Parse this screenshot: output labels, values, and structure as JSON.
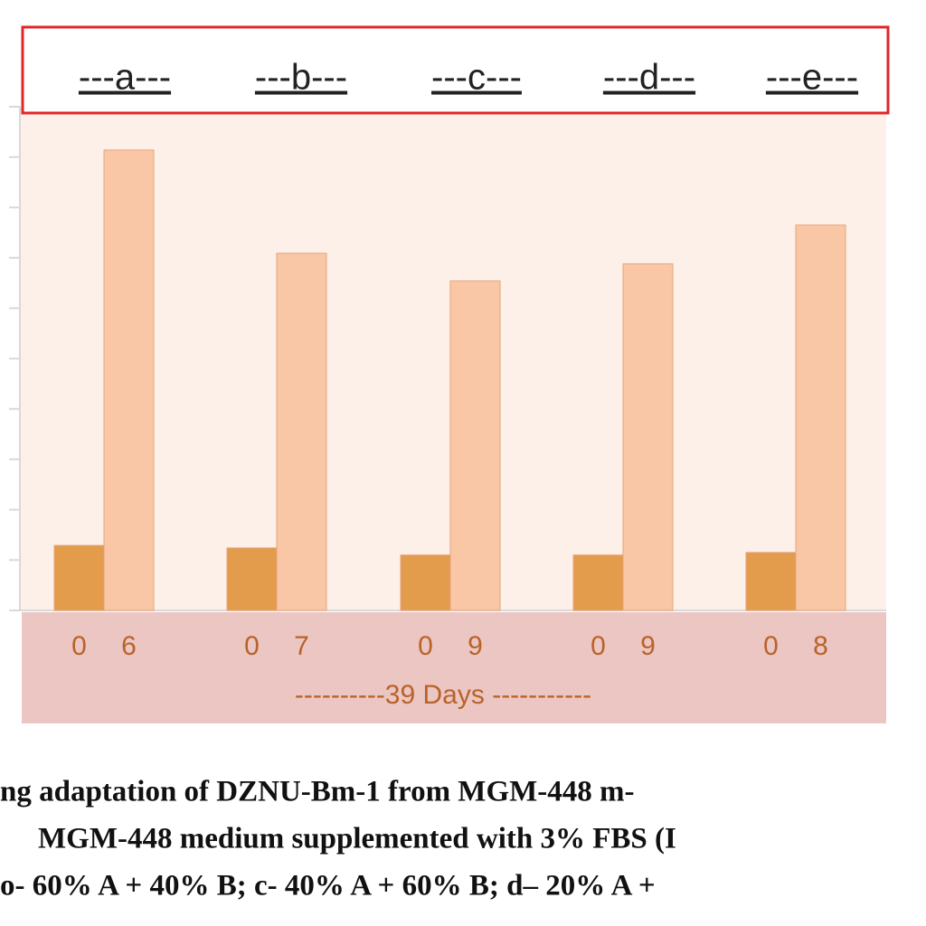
{
  "chart_data": {
    "type": "bar",
    "categories": [
      "---a---",
      "---b---",
      "---c---",
      "---d---",
      "---e---"
    ],
    "series": [
      {
        "color": "#e39b4c",
        "values": [
          1.29,
          1.24,
          1.1,
          1.1,
          1.15
        ],
        "bar_labels": [
          "0",
          "0",
          "0",
          "0",
          "0"
        ]
      },
      {
        "color": "#f9c7a6",
        "values": [
          9.14,
          7.09,
          6.54,
          6.88,
          7.65
        ],
        "bar_labels": [
          "6",
          "7",
          "9",
          "9",
          "8"
        ]
      }
    ],
    "xlabel": "----------39 Days -----------",
    "ylim": [
      0,
      10
    ],
    "yticks": [
      0,
      1,
      2,
      3,
      4,
      5,
      6,
      7,
      8,
      9,
      10
    ],
    "caption": [
      "ng adaptation of DZNU-Bm-1 from MGM-448 m-",
      "MGM-448 medium supplemented with 3% FBS (I",
      "o- 60% A + 40% B; c- 40% A + 60% B; d– 20% A +"
    ]
  }
}
